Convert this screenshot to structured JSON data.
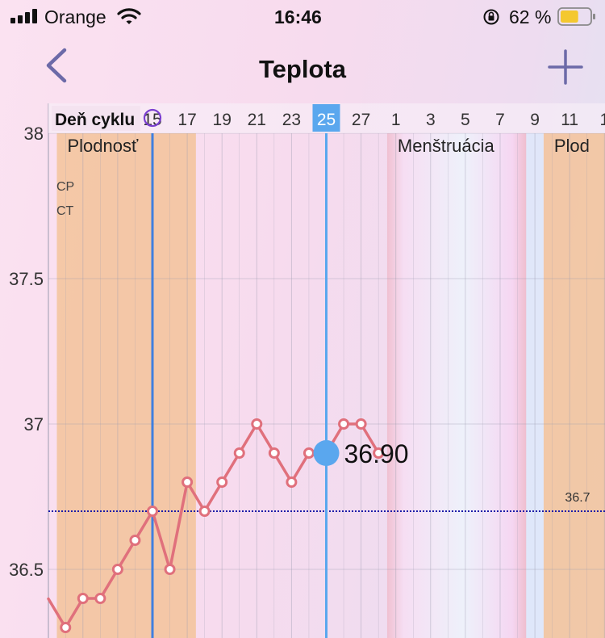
{
  "status_bar": {
    "carrier": "Orange",
    "time": "16:46",
    "battery_percent": "62 %",
    "battery_level": 0.62
  },
  "nav": {
    "title": "Teplota",
    "back_icon": "chevron-left-icon",
    "add_icon": "plus-icon",
    "accent_color": "#6c6aa8"
  },
  "chart_data": {
    "type": "line",
    "header_label": "Deň cyklu",
    "x_tick_labels": [
      "15",
      "17",
      "19",
      "21",
      "23",
      "25",
      "27",
      "1",
      "3",
      "5",
      "7",
      "9",
      "11",
      "1"
    ],
    "y_ticks": [
      "38",
      "37.5",
      "37",
      "36.5"
    ],
    "ylim": [
      36.22,
      38.0
    ],
    "side_labels": [
      "CP",
      "CT"
    ],
    "bands": [
      {
        "label": "Plodnosť",
        "start": 10,
        "end": 17,
        "color": "#f3c39a"
      },
      {
        "label": "Menštruácia",
        "start": 29,
        "end": 36,
        "color": "#f3d6f2"
      },
      {
        "label": "Plod",
        "start": 38,
        "end": 41,
        "color": "#f3c39a"
      }
    ],
    "ovulation_day": 15,
    "series": [
      {
        "x": [
          10,
          11,
          12,
          13,
          14,
          15,
          16,
          17,
          18,
          19,
          20,
          21,
          22,
          23,
          24,
          25,
          26,
          27,
          28
        ],
        "y": [
          36.3,
          36.4,
          36.4,
          36.5,
          36.6,
          36.7,
          36.5,
          36.8,
          36.7,
          36.8,
          36.9,
          37.0,
          36.9,
          36.8,
          36.9,
          36.9,
          37.0,
          37.0,
          36.9
        ],
        "color": "#e0707c"
      }
    ],
    "selected_day": 25,
    "selected_value_label": "36.90",
    "coverline_value": 36.7,
    "coverline_label": "36.7",
    "grid": true
  }
}
